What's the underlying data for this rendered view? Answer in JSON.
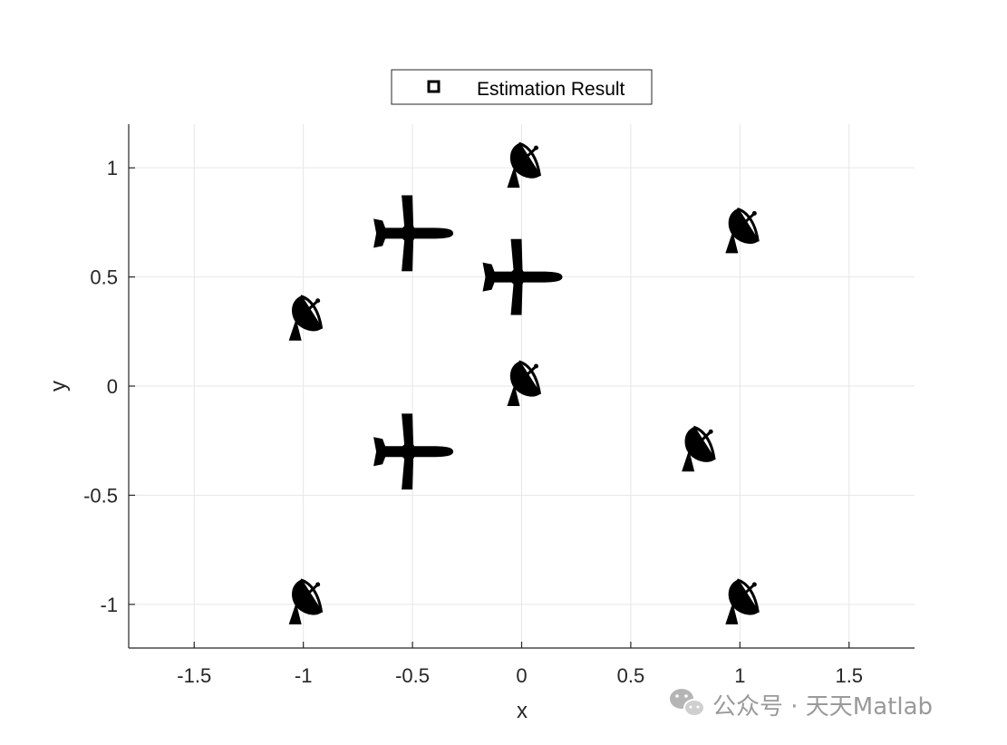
{
  "chart_data": {
    "type": "scatter",
    "title": "",
    "xlabel": "x",
    "ylabel": "y",
    "xlim": [
      -1.8,
      1.8
    ],
    "ylim": [
      -1.2,
      1.2
    ],
    "xticks": [
      -1.5,
      -1,
      -0.5,
      0,
      0.5,
      1,
      1.5
    ],
    "yticks": [
      -1,
      -0.5,
      0,
      0.5,
      1
    ],
    "xtick_labels": [
      "-1.5",
      "-1",
      "-0.5",
      "0",
      "0.5",
      "1",
      "1.5"
    ],
    "ytick_labels": [
      "-1",
      "-0.5",
      "0",
      "0.5",
      "1"
    ],
    "grid": true,
    "legend": {
      "position": "top-center",
      "entries": [
        "Estimation Result"
      ],
      "marker": "square-outline"
    },
    "series": [
      {
        "marker": "radar-dish-icon",
        "points": [
          {
            "x": 0,
            "y": 1
          },
          {
            "x": 1,
            "y": 0.7
          },
          {
            "x": -1,
            "y": 0.3
          },
          {
            "x": 0,
            "y": 0
          },
          {
            "x": 0.8,
            "y": -0.3
          },
          {
            "x": -1,
            "y": -1
          },
          {
            "x": 1,
            "y": -1
          }
        ]
      },
      {
        "marker": "airplane-icon",
        "points": [
          {
            "x": -0.5,
            "y": 0.7
          },
          {
            "x": 0,
            "y": 0.5
          },
          {
            "x": -0.5,
            "y": -0.3
          }
        ]
      }
    ],
    "colors": {
      "axis": "#262626",
      "grid": "#e6e6e6",
      "marker": "#000000"
    }
  },
  "watermark": {
    "text": "公众号 · 天天Matlab",
    "icon": "wechat-icon"
  }
}
